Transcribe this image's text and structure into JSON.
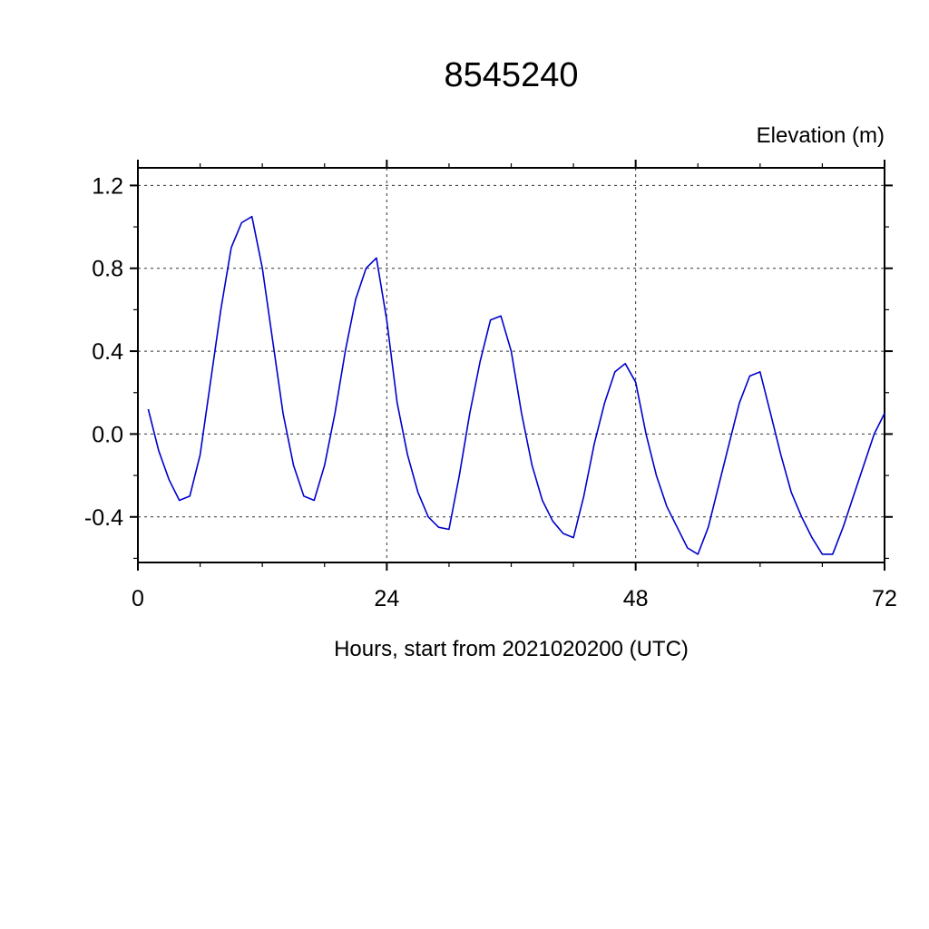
{
  "chart_data": {
    "type": "line",
    "title": "8545240",
    "xlabel": "Hours, start from 2021020200 (UTC)",
    "ylabel": "Elevation (m)",
    "xlim": [
      0,
      72
    ],
    "ylim": [
      -0.62,
      1.285
    ],
    "x_major_ticks": [
      0,
      24,
      48,
      72
    ],
    "x_tick_labels": [
      "0",
      "24",
      "48",
      "72"
    ],
    "x_minor_ticks": [
      6,
      12,
      18,
      30,
      36,
      42,
      54,
      60,
      66
    ],
    "x_gridlines": [
      24,
      48
    ],
    "y_major_ticks": [
      -0.4,
      0.0,
      0.4,
      0.8,
      1.2
    ],
    "y_tick_labels": [
      "-0.4",
      "0.0",
      "0.4",
      "0.8",
      "1.2"
    ],
    "y_minor_ticks": [
      -0.6,
      -0.2,
      0.2,
      0.6,
      1.0
    ],
    "grid": true,
    "legend_position": "none",
    "line_color": "#0000cc",
    "series": [
      {
        "name": "elevation",
        "x": [
          1,
          2,
          3,
          4,
          5,
          6,
          7,
          8,
          9,
          10,
          11,
          12,
          13,
          14,
          15,
          16,
          17,
          18,
          19,
          20,
          21,
          22,
          23,
          24,
          25,
          26,
          27,
          28,
          29,
          30,
          31,
          32,
          33,
          34,
          35,
          36,
          37,
          38,
          39,
          40,
          41,
          42,
          43,
          44,
          45,
          46,
          47,
          48,
          49,
          50,
          51,
          52,
          53,
          54,
          55,
          56,
          57,
          58,
          59,
          60,
          61,
          62,
          63,
          64,
          65,
          66,
          67,
          68,
          69,
          70,
          71,
          72
        ],
        "y": [
          0.12,
          -0.08,
          -0.22,
          -0.32,
          -0.3,
          -0.1,
          0.25,
          0.6,
          0.9,
          1.02,
          1.05,
          0.8,
          0.45,
          0.1,
          -0.15,
          -0.3,
          -0.32,
          -0.15,
          0.1,
          0.4,
          0.65,
          0.8,
          0.85,
          0.55,
          0.15,
          -0.1,
          -0.28,
          -0.4,
          -0.45,
          -0.46,
          -0.2,
          0.1,
          0.35,
          0.55,
          0.57,
          0.4,
          0.1,
          -0.15,
          -0.32,
          -0.42,
          -0.48,
          -0.5,
          -0.3,
          -0.05,
          0.15,
          0.3,
          0.34,
          0.25,
          0.0,
          -0.2,
          -0.35,
          -0.45,
          -0.55,
          -0.58,
          -0.45,
          -0.25,
          -0.05,
          0.15,
          0.28,
          0.3,
          0.1,
          -0.1,
          -0.28,
          -0.4,
          -0.5,
          -0.58,
          -0.58,
          -0.45,
          -0.3,
          -0.15,
          0.0,
          0.1
        ]
      }
    ]
  }
}
